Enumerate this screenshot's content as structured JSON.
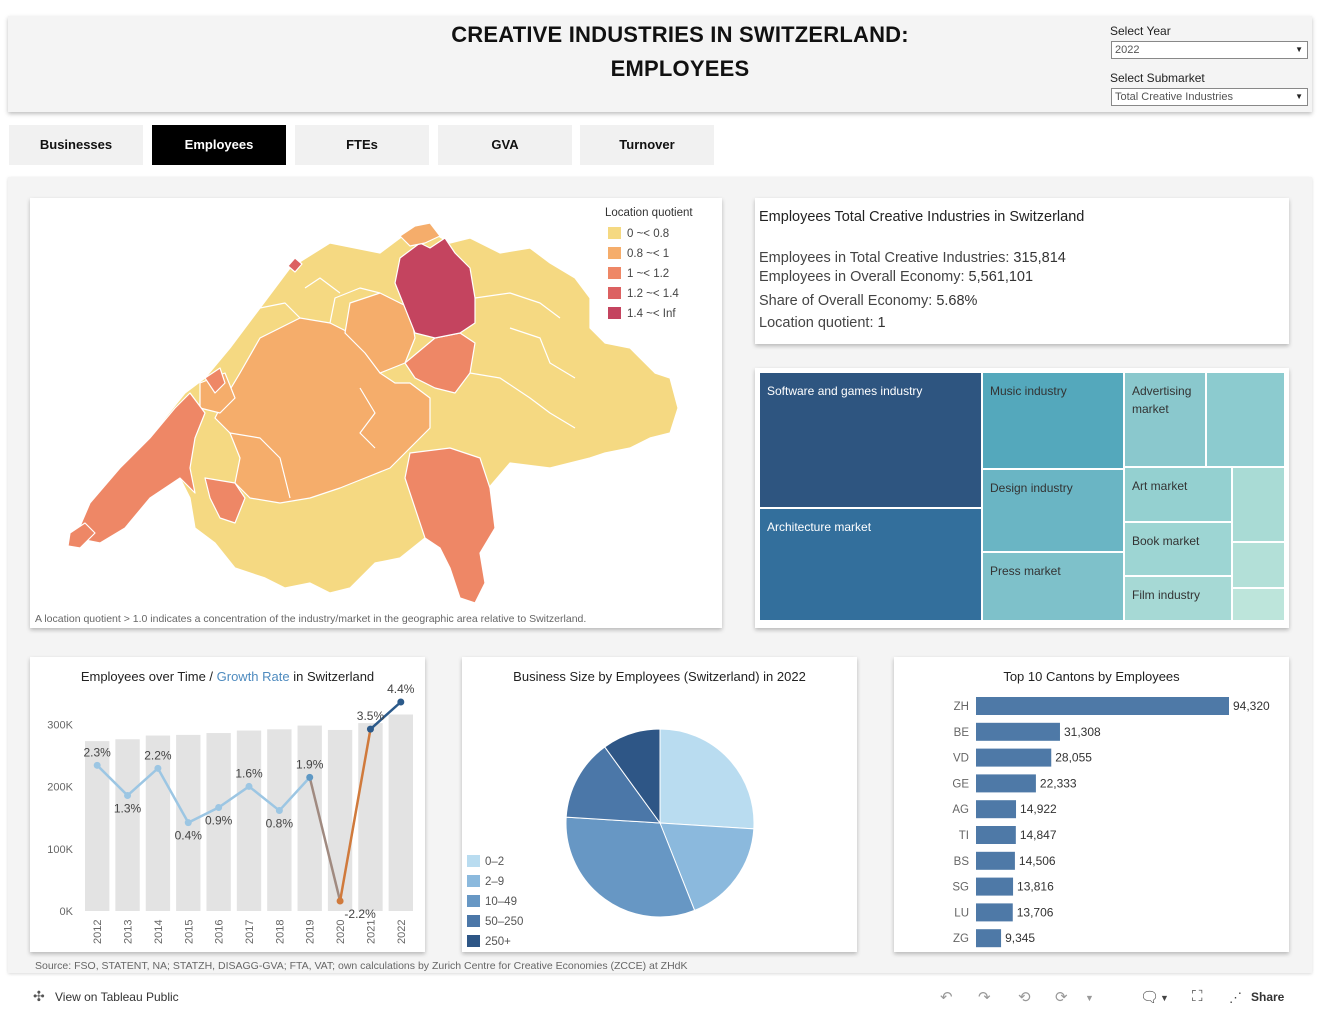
{
  "header": {
    "title_line1": "CREATIVE INDUSTRIES IN SWITZERLAND:",
    "title_line2": "EMPLOYEES",
    "year_label": "Select Year",
    "year_value": "2022",
    "submarket_label": "Select Submarket",
    "submarket_value": "Total Creative Industries"
  },
  "tabs": [
    {
      "label": "Businesses"
    },
    {
      "label": "Employees"
    },
    {
      "label": "FTEs"
    },
    {
      "label": "GVA"
    },
    {
      "label": "Turnover"
    }
  ],
  "map": {
    "legend_title": "Location quotient",
    "legend": [
      {
        "label": "0 ~< 0.8",
        "color": "#f5d982"
      },
      {
        "label": "0.8 ~< 1",
        "color": "#f5ad6b"
      },
      {
        "label": "1 ~< 1.2",
        "color": "#ee8766"
      },
      {
        "label": "1.2 ~< 1.4",
        "color": "#dc6161"
      },
      {
        "label": "1.4 ~< Inf",
        "color": "#c4445f"
      }
    ],
    "note": "A location quotient > 1.0 indicates a concentration of the industry/market in the geographic area relative to Switzerland."
  },
  "summary": {
    "title": "Employees Total Creative Industries in Switzerland",
    "l1_label": "Employees in Total Creative Industries: ",
    "l1_value": "315,814",
    "l2_label": "Employees in Overall Economy: ",
    "l2_value": "5,561,101",
    "l3_label": "Share of Overall Economy:  ",
    "l3_value": "5.68%",
    "l4_label": "Location quotient: ",
    "l4_value": "1"
  },
  "treemap": {
    "cells": [
      {
        "label": "Software and games industry"
      },
      {
        "label": "Architecture market"
      },
      {
        "label": "Music industry"
      },
      {
        "label": "Design industry"
      },
      {
        "label": "Press market"
      },
      {
        "label": "Advertising market"
      },
      {
        "label": "Art market"
      },
      {
        "label": "Book market"
      },
      {
        "label": "Film industry"
      }
    ]
  },
  "line_card": {
    "title_a": "Employees over Time / ",
    "title_b": "Growth Rate",
    "title_c": " in Switzerland"
  },
  "pie_card": {
    "title": "Business Size by Employees (Switzerland) in 2022"
  },
  "bar_card": {
    "title": "Top 10 Cantons by Employees"
  },
  "chart_data": [
    {
      "type": "bar",
      "title": "Employees over Time / Growth Rate in Switzerland",
      "categories": [
        "2012",
        "2013",
        "2014",
        "2015",
        "2016",
        "2017",
        "2018",
        "2019",
        "2020",
        "2021",
        "2022"
      ],
      "series": [
        {
          "name": "Employees",
          "values": [
            273000,
            276000,
            282000,
            283000,
            286000,
            290000,
            292000,
            298000,
            291000,
            302000,
            315814
          ]
        },
        {
          "name": "Growth Rate",
          "values": [
            2.3,
            1.3,
            2.2,
            0.4,
            0.9,
            1.6,
            0.8,
            1.9,
            -2.2,
            3.5,
            4.4
          ],
          "labels": [
            "2.3%",
            "1.3%",
            "2.2%",
            "0.4%",
            "0.9%",
            "1.6%",
            "0.8%",
            "1.9%",
            "-2.2%",
            "3.5%",
            "4.4%"
          ]
        }
      ],
      "yticks": [
        "0K",
        "100K",
        "200K",
        "300K"
      ],
      "ylim": [
        0,
        300000
      ],
      "colors": {
        "bar": "#e3e3e3",
        "line_light": "#9cc6e3",
        "line_mid": "#5e98c4",
        "line_dark": "#2c5a8a",
        "line_neg": "#d07a3c"
      }
    },
    {
      "type": "pie",
      "title": "Business Size by Employees (Switzerland) in 2022",
      "slices": [
        {
          "label": "0–2",
          "value": 26,
          "color": "#b9dcf0"
        },
        {
          "label": "2–9",
          "value": 18,
          "color": "#8bb9dd"
        },
        {
          "label": "10–49",
          "value": 32,
          "color": "#6797c4"
        },
        {
          "label": "50–250",
          "value": 14,
          "color": "#4b77a8"
        },
        {
          "label": "250+",
          "value": 10,
          "color": "#2e5686"
        }
      ]
    },
    {
      "type": "bar",
      "title": "Top 10 Cantons by Employees",
      "categories": [
        "ZH",
        "BE",
        "VD",
        "GE",
        "AG",
        "TI",
        "BS",
        "SG",
        "LU",
        "ZG"
      ],
      "values": [
        94320,
        31308,
        28055,
        22333,
        14922,
        14847,
        14506,
        13816,
        13706,
        9345
      ],
      "labels": [
        "94,320",
        "31,308",
        "28,055",
        "22,333",
        "14,922",
        "14,847",
        "14,506",
        "13,816",
        "13,706",
        "9,345"
      ],
      "color": "#4e79a7"
    }
  ],
  "source": "Source: FSO, STATENT, NA; STATZH, DISAGG-GVA; FTA, VAT; own calculations by Zurich Centre for Creative Economies (ZCCE) at ZHdK",
  "footer": {
    "link": "View on Tableau Public",
    "share": "Share"
  }
}
